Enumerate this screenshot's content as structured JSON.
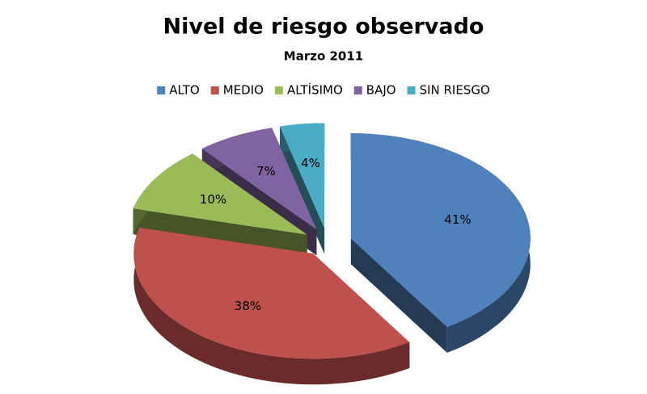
{
  "chart_data": {
    "type": "pie",
    "title": "Nivel de riesgo observado",
    "subtitle": "Marzo 2011",
    "categories": [
      "ALTO",
      "MEDIO",
      "ALTÍSIMO",
      "BAJO",
      "SIN RIESGO"
    ],
    "values": [
      41,
      38,
      10,
      7,
      4
    ],
    "value_labels": [
      "41%",
      "38%",
      "10%",
      "7%",
      "4%"
    ],
    "colors": [
      "#4f81bd",
      "#c0504d",
      "#9bbb59",
      "#8064a2",
      "#4bacc6"
    ],
    "legend": "top"
  }
}
